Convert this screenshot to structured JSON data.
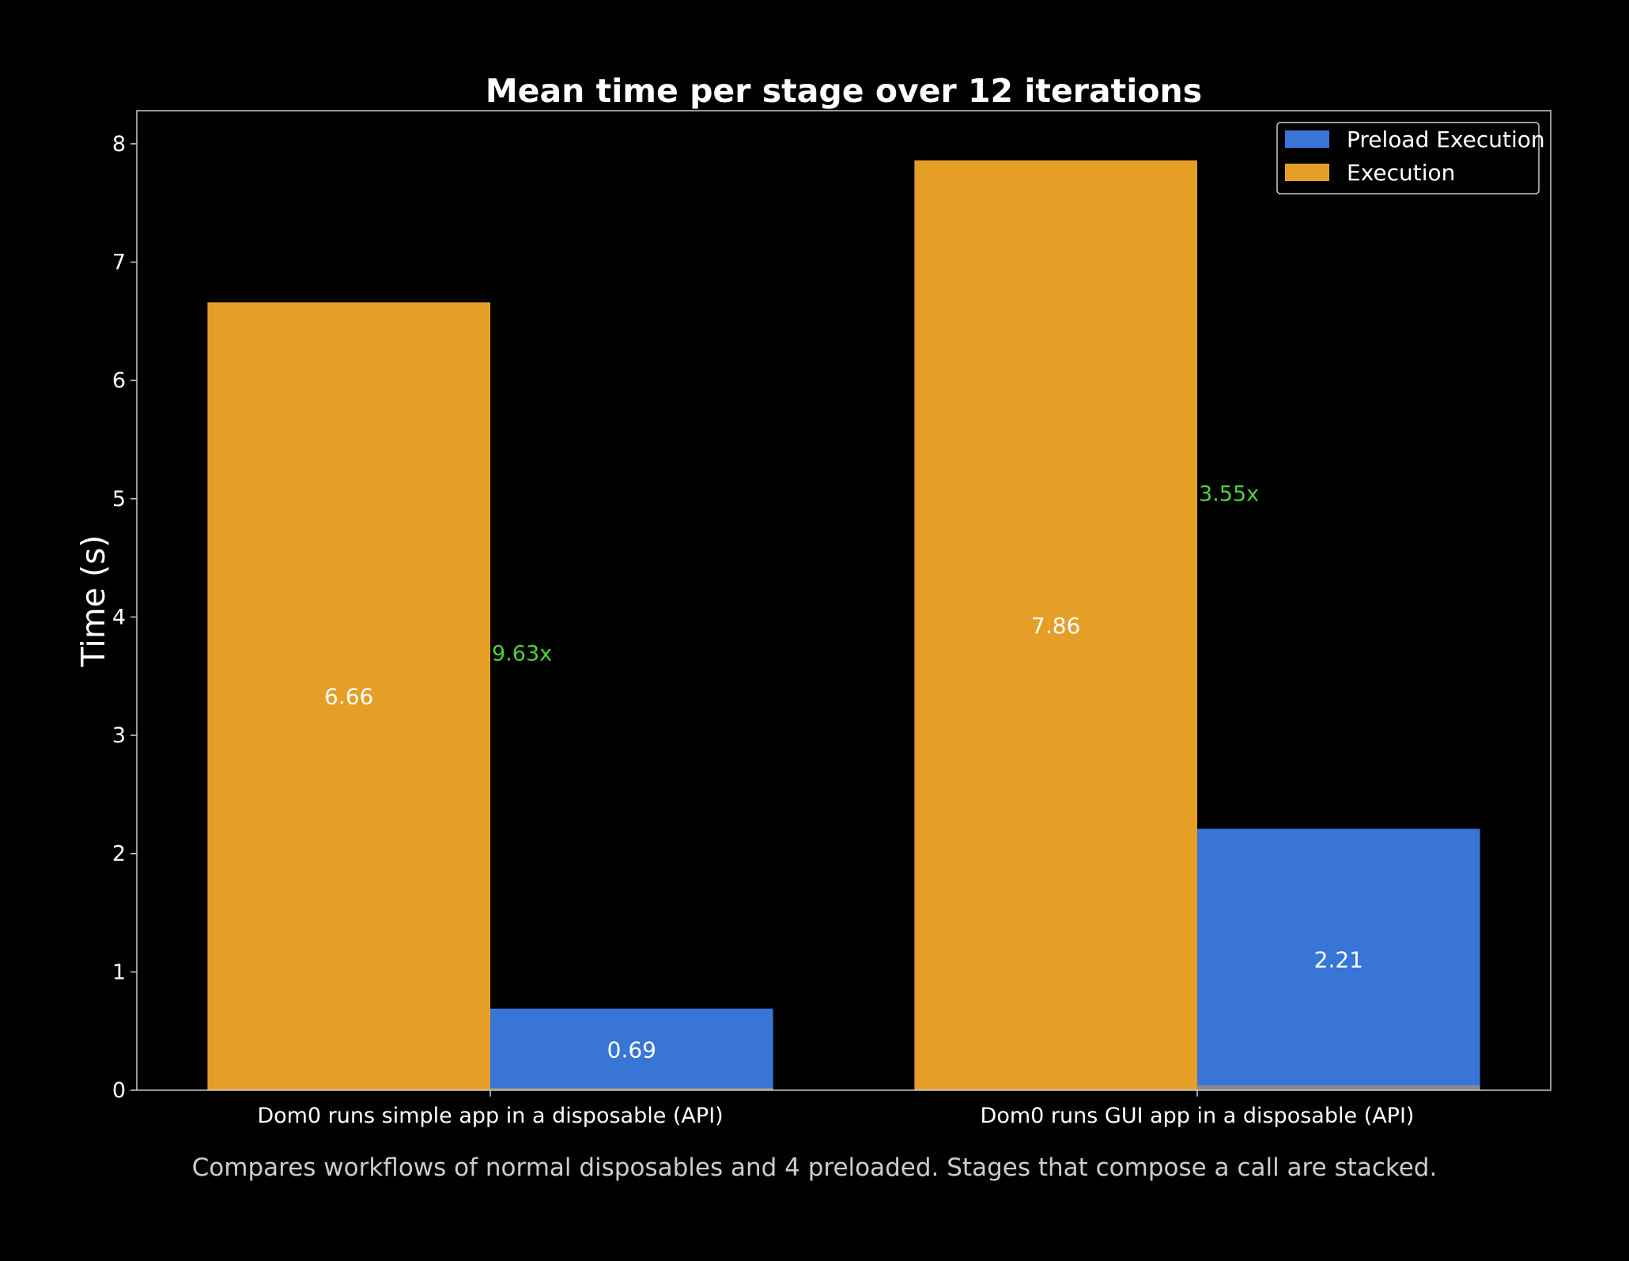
{
  "chart_data": {
    "type": "bar",
    "title": "Mean time per stage over 12 iterations",
    "ylabel": "Time (s)",
    "xlabel": "",
    "caption": "Compares workflows of normal disposables and 4 preloaded. Stages that compose a call are stacked.",
    "ylim": [
      0,
      8.28
    ],
    "yticks": [
      0,
      1,
      2,
      3,
      4,
      5,
      6,
      7,
      8
    ],
    "grid": false,
    "legend_position": "top-right",
    "categories": [
      "Dom0 runs simple app in a disposable (API)",
      "Dom0 runs GUI app in a disposable (API)"
    ],
    "series": [
      {
        "name": "Execution",
        "color": "#E59F27",
        "values": [
          6.66,
          7.86
        ],
        "labels": [
          "6.66",
          "7.86"
        ]
      },
      {
        "name": "Preload Execution",
        "color": "#3875D7",
        "values": [
          0.69,
          2.21
        ],
        "labels": [
          "0.69",
          "2.21"
        ]
      }
    ],
    "legend_order": [
      "Preload Execution",
      "Execution"
    ],
    "thin_base_values": [
      0.02,
      0.04
    ],
    "thin_base_color": "#8A8A8A",
    "speedup": {
      "labels": [
        "9.63x",
        "3.55x"
      ],
      "values": [
        3.7,
        5.05
      ],
      "color": "#4FD13A"
    }
  }
}
